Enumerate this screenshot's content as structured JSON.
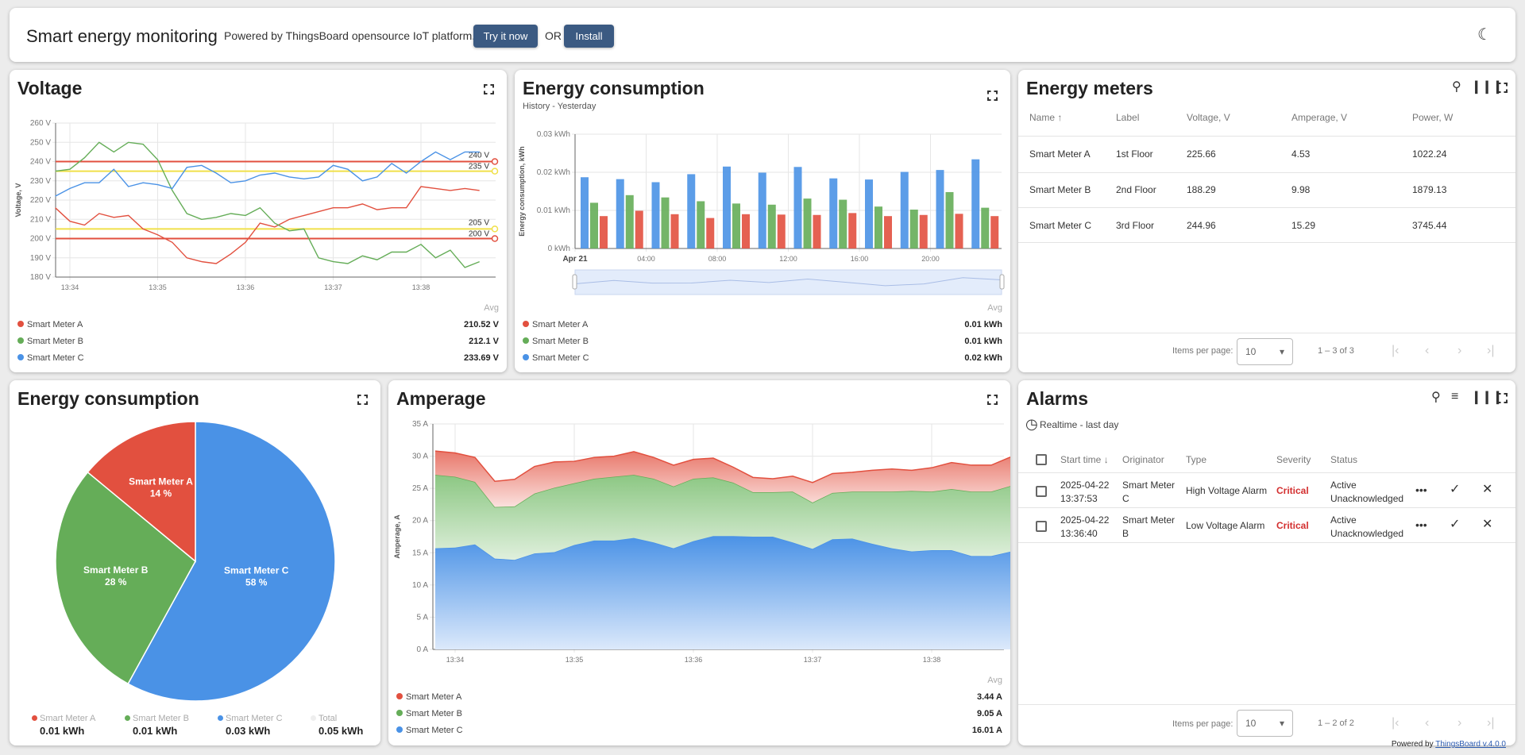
{
  "header": {
    "title": "Smart energy monitoring",
    "subtitle": "Powered by ThingsBoard opensource IoT platform.",
    "try_label": "Try it now",
    "or_label": "OR",
    "install_label": "Install",
    "theme_icon": "moon-icon"
  },
  "colors": {
    "meter_a": "#e2503f",
    "meter_b": "#65ad58",
    "meter_c": "#4a92e6",
    "accent": "#3b5a82",
    "critical": "#d32f2f"
  },
  "voltage": {
    "title": "Voltage",
    "avg_label": "Avg",
    "legend": [
      {
        "name": "Smart Meter A",
        "value": "210.52 V"
      },
      {
        "name": "Smart Meter B",
        "value": "212.1 V"
      },
      {
        "name": "Smart Meter C",
        "value": "233.69 V"
      }
    ]
  },
  "energy_bar": {
    "title": "Energy consumption",
    "subtitle": "History - Yesterday",
    "avg_label": "Avg",
    "legend": [
      {
        "name": "Smart Meter A",
        "value": "0.01 kWh"
      },
      {
        "name": "Smart Meter B",
        "value": "0.01 kWh"
      },
      {
        "name": "Smart Meter C",
        "value": "0.02 kWh"
      }
    ]
  },
  "meters": {
    "title": "Energy meters",
    "columns": [
      "Name",
      "Label",
      "Voltage, V",
      "Amperage, V",
      "Power, W"
    ],
    "rows": [
      [
        "Smart Meter A",
        "1st Floor",
        "225.66",
        "4.53",
        "1022.24"
      ],
      [
        "Smart Meter B",
        "2nd Floor",
        "188.29",
        "9.98",
        "1879.13"
      ],
      [
        "Smart Meter C",
        "3rd Floor",
        "244.96",
        "15.29",
        "3745.44"
      ]
    ],
    "items_per_page_label": "Items per page:",
    "page_size": "10",
    "range": "1 – 3 of 3"
  },
  "energy_pie": {
    "title": "Energy consumption",
    "legend": [
      {
        "name": "Smart Meter A",
        "value": "0.01 kWh"
      },
      {
        "name": "Smart Meter B",
        "value": "0.01 kWh"
      },
      {
        "name": "Smart Meter C",
        "value": "0.03 kWh"
      },
      {
        "name": "Total",
        "value": "0.05 kWh"
      }
    ]
  },
  "amperage": {
    "title": "Amperage",
    "avg_label": "Avg",
    "legend": [
      {
        "name": "Smart Meter A",
        "value": "3.44 A"
      },
      {
        "name": "Smart Meter B",
        "value": "9.05 A"
      },
      {
        "name": "Smart Meter C",
        "value": "16.01 A"
      }
    ]
  },
  "alarms": {
    "title": "Alarms",
    "timewindow": "Realtime - last day",
    "columns": [
      "Start time",
      "Originator",
      "Type",
      "Severity",
      "Status"
    ],
    "rows": [
      {
        "time1": "2025-04-22",
        "time2": "13:37:53",
        "orig1": "Smart Meter",
        "orig2": "C",
        "type": "High Voltage Alarm",
        "severity": "Critical",
        "status1": "Active",
        "status2": "Unacknowledged"
      },
      {
        "time1": "2025-04-22",
        "time2": "13:36:40",
        "orig1": "Smart Meter",
        "orig2": "B",
        "type": "Low Voltage Alarm",
        "severity": "Critical",
        "status1": "Active",
        "status2": "Unacknowledged"
      }
    ],
    "items_per_page_label": "Items per page:",
    "page_size": "10",
    "range": "1 – 2 of 2"
  },
  "footer": {
    "powered_by": "Powered by",
    "link": "ThingsBoard v.4.0.0"
  },
  "chart_data": [
    {
      "type": "line",
      "ylabel": "Voltage, V",
      "ylim": [
        180,
        260
      ],
      "y_ticks": [
        "180 V",
        "190 V",
        "200 V",
        "210 V",
        "220 V",
        "230 V",
        "240 V",
        "250 V",
        "260 V"
      ],
      "x_ticks": [
        "13:34",
        "13:35",
        "13:36",
        "13:37",
        "13:38"
      ],
      "x_start": "13:33:50",
      "x_step_seconds": 10,
      "grid": true,
      "thresholds": [
        {
          "value": 240,
          "label": "240 V",
          "color": "#e2503f"
        },
        {
          "value": 235,
          "label": "235 V",
          "color": "#f0e04a"
        },
        {
          "value": 205,
          "label": "205 V",
          "color": "#f0e04a"
        },
        {
          "value": 200,
          "label": "200 V",
          "color": "#e2503f"
        }
      ],
      "series": [
        {
          "name": "Smart Meter A",
          "values": [
            216,
            209,
            207,
            213,
            211,
            212,
            205,
            202,
            198,
            190,
            188,
            187,
            192,
            198,
            208,
            206,
            210,
            212,
            214,
            216,
            216,
            218,
            215,
            216,
            216,
            227,
            226,
            225,
            226,
            225
          ]
        },
        {
          "name": "Smart Meter B",
          "values": [
            235,
            236,
            242,
            250,
            245,
            250,
            249,
            241,
            225,
            213,
            210,
            211,
            213,
            212,
            216,
            208,
            204,
            205,
            190,
            188,
            187,
            191,
            189,
            193,
            193,
            197,
            190,
            194,
            185,
            188
          ]
        },
        {
          "name": "Smart Meter C",
          "values": [
            222,
            226,
            229,
            229,
            236,
            227,
            229,
            228,
            226,
            237,
            238,
            234,
            229,
            230,
            233,
            234,
            232,
            231,
            232,
            238,
            236,
            230,
            232,
            239,
            234,
            240,
            245,
            241,
            245,
            245
          ]
        }
      ]
    },
    {
      "type": "bar",
      "ylabel": "Energy consumption, kWh",
      "ylim": [
        0,
        0.03
      ],
      "y_ticks": [
        "0 kWh",
        "0.01 kWh",
        "0.02 kWh",
        "0.03 kWh"
      ],
      "x_ticks": [
        "Apr 21",
        "04:00",
        "08:00",
        "12:00",
        "16:00",
        "20:00"
      ],
      "categories": [
        "00:00",
        "02:00",
        "04:00",
        "06:00",
        "08:00",
        "10:00",
        "12:00",
        "14:00",
        "16:00",
        "18:00",
        "20:00",
        "22:00"
      ],
      "grid": true,
      "series": [
        {
          "name": "Smart Meter C",
          "values": [
            0.0187,
            0.0182,
            0.0174,
            0.0195,
            0.0215,
            0.0199,
            0.0214,
            0.0184,
            0.0181,
            0.0201,
            0.0206,
            0.0234
          ]
        },
        {
          "name": "Smart Meter B",
          "values": [
            0.012,
            0.014,
            0.0134,
            0.0124,
            0.0118,
            0.0115,
            0.0131,
            0.0128,
            0.011,
            0.0102,
            0.0148,
            0.0107
          ]
        },
        {
          "name": "Smart Meter A",
          "values": [
            0.0085,
            0.0099,
            0.009,
            0.008,
            0.009,
            0.0089,
            0.0088,
            0.0093,
            0.0085,
            0.0088,
            0.0091,
            0.0085
          ]
        }
      ]
    },
    {
      "type": "pie",
      "slices": [
        {
          "name": "Smart Meter C",
          "percent": 58,
          "label": "58 %"
        },
        {
          "name": "Smart Meter B",
          "percent": 28,
          "label": "28 %"
        },
        {
          "name": "Smart Meter A",
          "percent": 14,
          "label": "14 %"
        }
      ]
    },
    {
      "type": "area",
      "stacked": true,
      "ylabel": "Amperage, A",
      "ylim": [
        0,
        35
      ],
      "y_ticks": [
        "0 A",
        "5 A",
        "10 A",
        "15 A",
        "20 A",
        "25 A",
        "30 A",
        "35 A"
      ],
      "x_ticks": [
        "13:34",
        "13:35",
        "13:36",
        "13:37",
        "13:38"
      ],
      "x_start": "13:33:50",
      "x_step_seconds": 10,
      "grid": true,
      "series": [
        {
          "name": "Smart Meter C",
          "values": [
            15.7,
            15.8,
            16.3,
            14.1,
            13.9,
            14.9,
            15.1,
            16.2,
            16.9,
            16.9,
            17.3,
            16.6,
            15.7,
            16.8,
            17.6,
            17.6,
            17.5,
            17.5,
            16.6,
            15.6,
            17.1,
            17.2,
            16.4,
            15.7,
            15.2,
            15.4,
            15.4,
            14.5,
            14.5,
            15.2
          ]
        },
        {
          "name": "Smart Meter B",
          "values": [
            11.4,
            11.0,
            9.7,
            8.0,
            8.3,
            9.3,
            10.0,
            9.6,
            9.6,
            9.9,
            9.8,
            9.9,
            9.6,
            9.7,
            9.1,
            8.3,
            6.9,
            6.9,
            7.9,
            7.2,
            7.2,
            7.3,
            8.1,
            8.8,
            9.4,
            9.1,
            9.5,
            10.0,
            10.0,
            10.2
          ]
        },
        {
          "name": "Smart Meter A",
          "values": [
            3.7,
            3.7,
            3.8,
            4.0,
            4.2,
            4.2,
            4.0,
            3.4,
            3.3,
            3.2,
            3.6,
            3.3,
            3.3,
            3.0,
            3.0,
            2.4,
            2.3,
            2.1,
            2.4,
            3.1,
            3.0,
            3.0,
            3.3,
            3.5,
            3.2,
            3.7,
            4.1,
            4.1,
            4.1,
            4.5
          ]
        }
      ]
    }
  ]
}
